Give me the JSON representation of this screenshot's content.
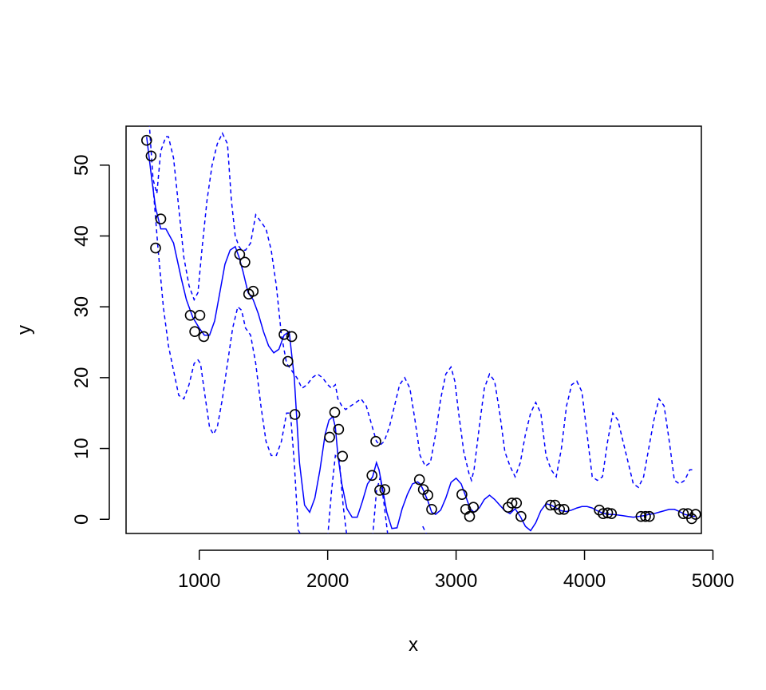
{
  "chart_data": {
    "type": "scatter",
    "title": "",
    "xlabel": "x",
    "ylabel": "y",
    "xlim": [
      430,
      4910
    ],
    "ylim": [
      -2,
      55.5
    ],
    "xticks": [
      1000,
      2000,
      3000,
      4000,
      5000
    ],
    "yticks": [
      0,
      10,
      20,
      30,
      40,
      50
    ],
    "grid": false,
    "series": [
      {
        "kind": "points",
        "marker": "open-circle",
        "color": "#000000",
        "x": [
          590,
          625,
          660,
          700,
          930,
          965,
          1005,
          1035,
          1315,
          1355,
          1385,
          1420,
          1660,
          1690,
          1720,
          1745,
          2015,
          2055,
          2085,
          2115,
          2345,
          2375,
          2405,
          2445,
          2715,
          2745,
          2780,
          2810,
          3045,
          3075,
          3105,
          3135,
          3405,
          3435,
          3470,
          3505,
          3735,
          3770,
          3805,
          3840,
          4115,
          4145,
          4180,
          4210,
          4440,
          4475,
          4505,
          4770,
          4805,
          4835,
          4865
        ],
        "y": [
          53.5,
          51.3,
          38.3,
          42.4,
          28.8,
          26.5,
          28.8,
          25.8,
          37.4,
          36.3,
          31.8,
          32.2,
          26.1,
          22.3,
          25.8,
          14.8,
          11.6,
          15.1,
          12.7,
          8.9,
          6.2,
          11.0,
          4.1,
          4.2,
          5.6,
          4.2,
          3.4,
          1.4,
          3.5,
          1.4,
          0.4,
          1.7,
          1.7,
          2.3,
          2.3,
          0.4,
          2.0,
          2.0,
          1.4,
          1.4,
          1.3,
          0.8,
          0.9,
          0.8,
          0.4,
          0.4,
          0.4,
          0.8,
          0.8,
          0.1,
          0.7
        ]
      },
      {
        "kind": "line",
        "style": "solid",
        "color": "#0000ff",
        "x": [
          590,
          630,
          660,
          700,
          740,
          800,
          860,
          900,
          950,
          1000,
          1040,
          1080,
          1120,
          1160,
          1200,
          1240,
          1280,
          1310,
          1340,
          1380,
          1420,
          1460,
          1500,
          1540,
          1580,
          1620,
          1660,
          1700,
          1740,
          1780,
          1820,
          1860,
          1900,
          1940,
          1980,
          2010,
          2040,
          2060,
          2080,
          2110,
          2150,
          2190,
          2230,
          2270,
          2310,
          2350,
          2380,
          2400,
          2430,
          2460,
          2500,
          2540,
          2580,
          2620,
          2660,
          2700,
          2720,
          2740,
          2780,
          2810,
          2840,
          2880,
          2920,
          2960,
          3000,
          3040,
          3080,
          3110,
          3140,
          3180,
          3220,
          3260,
          3300,
          3340,
          3380,
          3420,
          3460,
          3500,
          3540,
          3580,
          3620,
          3660,
          3700,
          3740,
          3780,
          3820,
          3860,
          3900,
          3940,
          3980,
          4020,
          4060,
          4100,
          4140,
          4180,
          4220,
          4260,
          4300,
          4340,
          4380,
          4420,
          4460,
          4500,
          4540,
          4580,
          4620,
          4660,
          4700,
          4740,
          4780,
          4820,
          4860
        ],
        "y": [
          54.0,
          48.0,
          44.0,
          41.0,
          41.0,
          39.0,
          34.0,
          31.0,
          28.5,
          27.0,
          26.0,
          26.0,
          28.0,
          32.0,
          36.0,
          38.0,
          38.5,
          37.0,
          35.0,
          32.0,
          31.0,
          29.0,
          26.5,
          24.5,
          23.5,
          24.0,
          26.0,
          26.5,
          20.0,
          8.0,
          2.0,
          1.0,
          3.0,
          7.0,
          12.0,
          14.0,
          14.5,
          13.0,
          9.0,
          5.0,
          1.5,
          0.3,
          0.3,
          2.5,
          5.0,
          6.0,
          8.0,
          7.0,
          4.0,
          1.0,
          -1.3,
          -1.2,
          1.5,
          3.5,
          5.0,
          5.3,
          5.0,
          4.3,
          2.6,
          1.0,
          0.7,
          1.3,
          3.0,
          5.2,
          5.8,
          5.0,
          3.0,
          1.5,
          1.0,
          1.6,
          2.8,
          3.4,
          2.8,
          2.0,
          1.2,
          0.8,
          1.5,
          0.4,
          -1.0,
          -1.6,
          -0.5,
          1.2,
          2.2,
          2.0,
          1.6,
          1.2,
          1.1,
          1.3,
          1.6,
          1.8,
          1.8,
          1.6,
          1.2,
          0.9,
          0.7,
          0.7,
          0.6,
          0.5,
          0.4,
          0.3,
          0.4,
          0.5,
          0.7,
          0.8,
          1.0,
          1.2,
          1.4,
          1.4,
          1.1,
          0.7,
          0.5,
          0.4
        ]
      },
      {
        "kind": "line",
        "style": "dashed",
        "color": "#0000ff",
        "x": [
          610,
          640,
          670,
          700,
          740,
          760,
          800,
          840,
          880,
          920,
          960,
          990,
          1020,
          1060,
          1100,
          1140,
          1180,
          1220,
          1250,
          1280,
          1310,
          1330,
          1360,
          1400,
          1440,
          1480,
          1520,
          1560,
          1600,
          1640,
          1680,
          1720,
          1760,
          1800,
          1840,
          1880,
          1920,
          1960,
          2000,
          2030,
          2060,
          2080,
          2110,
          2140,
          2180,
          2220,
          2260,
          2300,
          2340,
          2380,
          2410,
          2440,
          2480,
          2520,
          2560,
          2600,
          2640,
          2680,
          2720,
          2760,
          2800,
          2840,
          2880,
          2920,
          2960,
          2990,
          3020,
          3060,
          3100,
          3120,
          3140,
          3180,
          3220,
          3260,
          3300,
          3340,
          3380,
          3420,
          3460,
          3500,
          3540,
          3580,
          3620,
          3660,
          3700,
          3740,
          3780,
          3820,
          3860,
          3900,
          3940,
          3980,
          4020,
          4060,
          4100,
          4140,
          4180,
          4220,
          4260,
          4300,
          4340,
          4380,
          4420,
          4460,
          4500,
          4540,
          4580,
          4620,
          4660,
          4700,
          4740,
          4780,
          4820,
          4860
        ],
        "y": [
          56.0,
          48.0,
          46.0,
          52.0,
          54.0,
          54.0,
          51.0,
          44.0,
          37.0,
          33.0,
          31.0,
          32.0,
          38.0,
          45.0,
          50.0,
          53.0,
          54.5,
          53.0,
          45.0,
          40.0,
          38.5,
          38.0,
          38.0,
          39.0,
          43.0,
          42.0,
          41.0,
          38.0,
          33.0,
          26.0,
          22.0,
          21.0,
          20.0,
          18.5,
          19.0,
          20.0,
          20.5,
          20.0,
          19.0,
          18.5,
          19.0,
          17.0,
          16.0,
          15.5,
          16.0,
          16.5,
          17.0,
          16.0,
          13.5,
          11.0,
          10.5,
          11.0,
          13.0,
          16.0,
          19.0,
          20.0,
          18.5,
          14.0,
          9.0,
          7.5,
          8.0,
          12.0,
          17.0,
          20.5,
          21.5,
          19.5,
          15.0,
          9.5,
          6.5,
          5.5,
          7.0,
          13.0,
          18.5,
          20.5,
          19.5,
          15.0,
          9.5,
          7.5,
          6.0,
          8.0,
          12.0,
          15.0,
          16.5,
          15.0,
          9.0,
          7.0,
          6.0,
          10.0,
          16.0,
          19.0,
          19.5,
          18.0,
          12.0,
          6.0,
          5.5,
          6.0,
          11.0,
          15.0,
          14.0,
          11.0,
          8.0,
          5.0,
          4.5,
          6.0,
          10.0,
          14.0,
          17.0,
          16.0,
          11.0,
          5.5,
          5.0,
          5.5,
          7.0,
          7.0
        ]
      },
      {
        "kind": "line",
        "style": "dashed",
        "color": "#0000ff",
        "x": [
          640,
          680,
          720,
          760,
          800,
          840,
          880,
          920,
          960,
          990,
          1010,
          1040,
          1080,
          1110,
          1140,
          1180,
          1220,
          1260,
          1300,
          1330,
          1360,
          1400,
          1440,
          1480,
          1520,
          1560,
          1600,
          1640,
          1680,
          1710,
          1740,
          1770,
          1800
        ],
        "y": [
          47.0,
          38.0,
          30.0,
          24.5,
          21.0,
          17.5,
          17.0,
          19.0,
          22.0,
          22.5,
          22.0,
          18.0,
          13.0,
          12.0,
          13.0,
          17.0,
          22.0,
          27.0,
          30.0,
          29.5,
          27.0,
          26.0,
          22.0,
          16.0,
          11.0,
          9.0,
          9.0,
          11.0,
          15.0,
          15.0,
          8.0,
          -1.5,
          -2.5
        ]
      },
      {
        "kind": "line",
        "style": "dashed",
        "color": "#0000ff",
        "x": [
          2000,
          2030,
          2060,
          2090,
          2120,
          2150
        ],
        "y": [
          -2.5,
          4.0,
          9.0,
          8.5,
          2.0,
          -2.5
        ]
      },
      {
        "kind": "line",
        "style": "dashed",
        "color": "#0000ff",
        "x": [
          2350,
          2380,
          2410,
          2440,
          2470
        ],
        "y": [
          -2.5,
          4.0,
          6.0,
          2.0,
          -2.5
        ]
      },
      {
        "kind": "line",
        "style": "dashed",
        "color": "#0000ff",
        "x": [
          2740,
          2780
        ],
        "y": [
          -1.0,
          -2.5
        ]
      }
    ]
  }
}
